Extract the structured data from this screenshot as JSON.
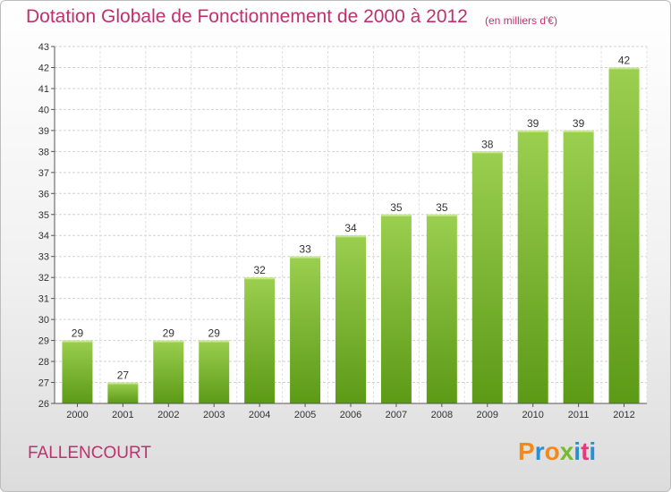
{
  "header": {
    "title": "Dotation Globale de Fonctionnement de 2000 à 2012",
    "unit": "(en milliers d'€)"
  },
  "footer": {
    "commune": "FALLENCOURT",
    "logo": "Proxiti"
  },
  "colors": {
    "bar_top": "#9bcf4f",
    "bar_bottom": "#5c9a16",
    "title": "#c0306e",
    "logo": [
      "#f08a1c",
      "#2a8fd0",
      "#f08a1c",
      "#7ab82f",
      "#2a8fd0",
      "#e23a7a",
      "#2a8fd0"
    ]
  },
  "chart_data": {
    "type": "bar",
    "title": "Dotation Globale de Fonctionnement de 2000 à 2012",
    "categories": [
      "2000",
      "2001",
      "2002",
      "2003",
      "2004",
      "2005",
      "2006",
      "2007",
      "2008",
      "2009",
      "2010",
      "2011",
      "2012"
    ],
    "values": [
      29,
      27,
      29,
      29,
      32,
      33,
      34,
      35,
      35,
      38,
      39,
      39,
      42
    ],
    "ylim": [
      26,
      43
    ],
    "yticks": [
      26,
      27,
      28,
      29,
      30,
      31,
      32,
      33,
      34,
      35,
      36,
      37,
      38,
      39,
      40,
      41,
      42,
      43
    ],
    "grid": true,
    "legend": "none"
  }
}
